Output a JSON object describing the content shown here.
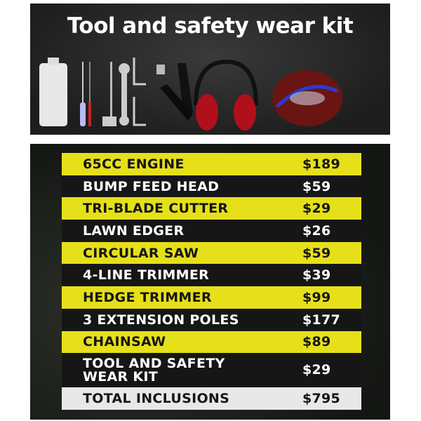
{
  "header": {
    "title": "Tool and safety wear kit"
  },
  "kit_items_icons": [
    "oil-bottle-icon",
    "screwdriver-icon",
    "file-icon",
    "spark-plug-wrench-icon",
    "spanner-icon",
    "hex-key-icon",
    "harness-strap-icon",
    "ear-muffs-icon",
    "gloves-and-goggles-icon"
  ],
  "colors": {
    "yellow": "#e6e01a",
    "black": "#161616",
    "total": "#e8e8e8"
  },
  "inclusions": [
    {
      "name": "65CC ENGINE",
      "price": "$189",
      "style": "yellow"
    },
    {
      "name": "BUMP FEED HEAD",
      "price": "$59",
      "style": "black"
    },
    {
      "name": "TRI-BLADE CUTTER",
      "price": "$29",
      "style": "yellow"
    },
    {
      "name": "LAWN EDGER",
      "price": "$26",
      "style": "black"
    },
    {
      "name": "CIRCULAR SAW",
      "price": "$59",
      "style": "yellow"
    },
    {
      "name": "4-LINE TRIMMER",
      "price": "$39",
      "style": "black"
    },
    {
      "name": "HEDGE TRIMMER",
      "price": "$99",
      "style": "yellow"
    },
    {
      "name": "3 EXTENSION POLES",
      "price": "$177",
      "style": "black"
    },
    {
      "name": "CHAINSAW",
      "price": "$89",
      "style": "yellow"
    },
    {
      "name": "TOOL AND SAFETY WEAR KIT",
      "price": "$29",
      "style": "black"
    }
  ],
  "total": {
    "name": "TOTAL INCLUSIONS",
    "price": "$795"
  }
}
